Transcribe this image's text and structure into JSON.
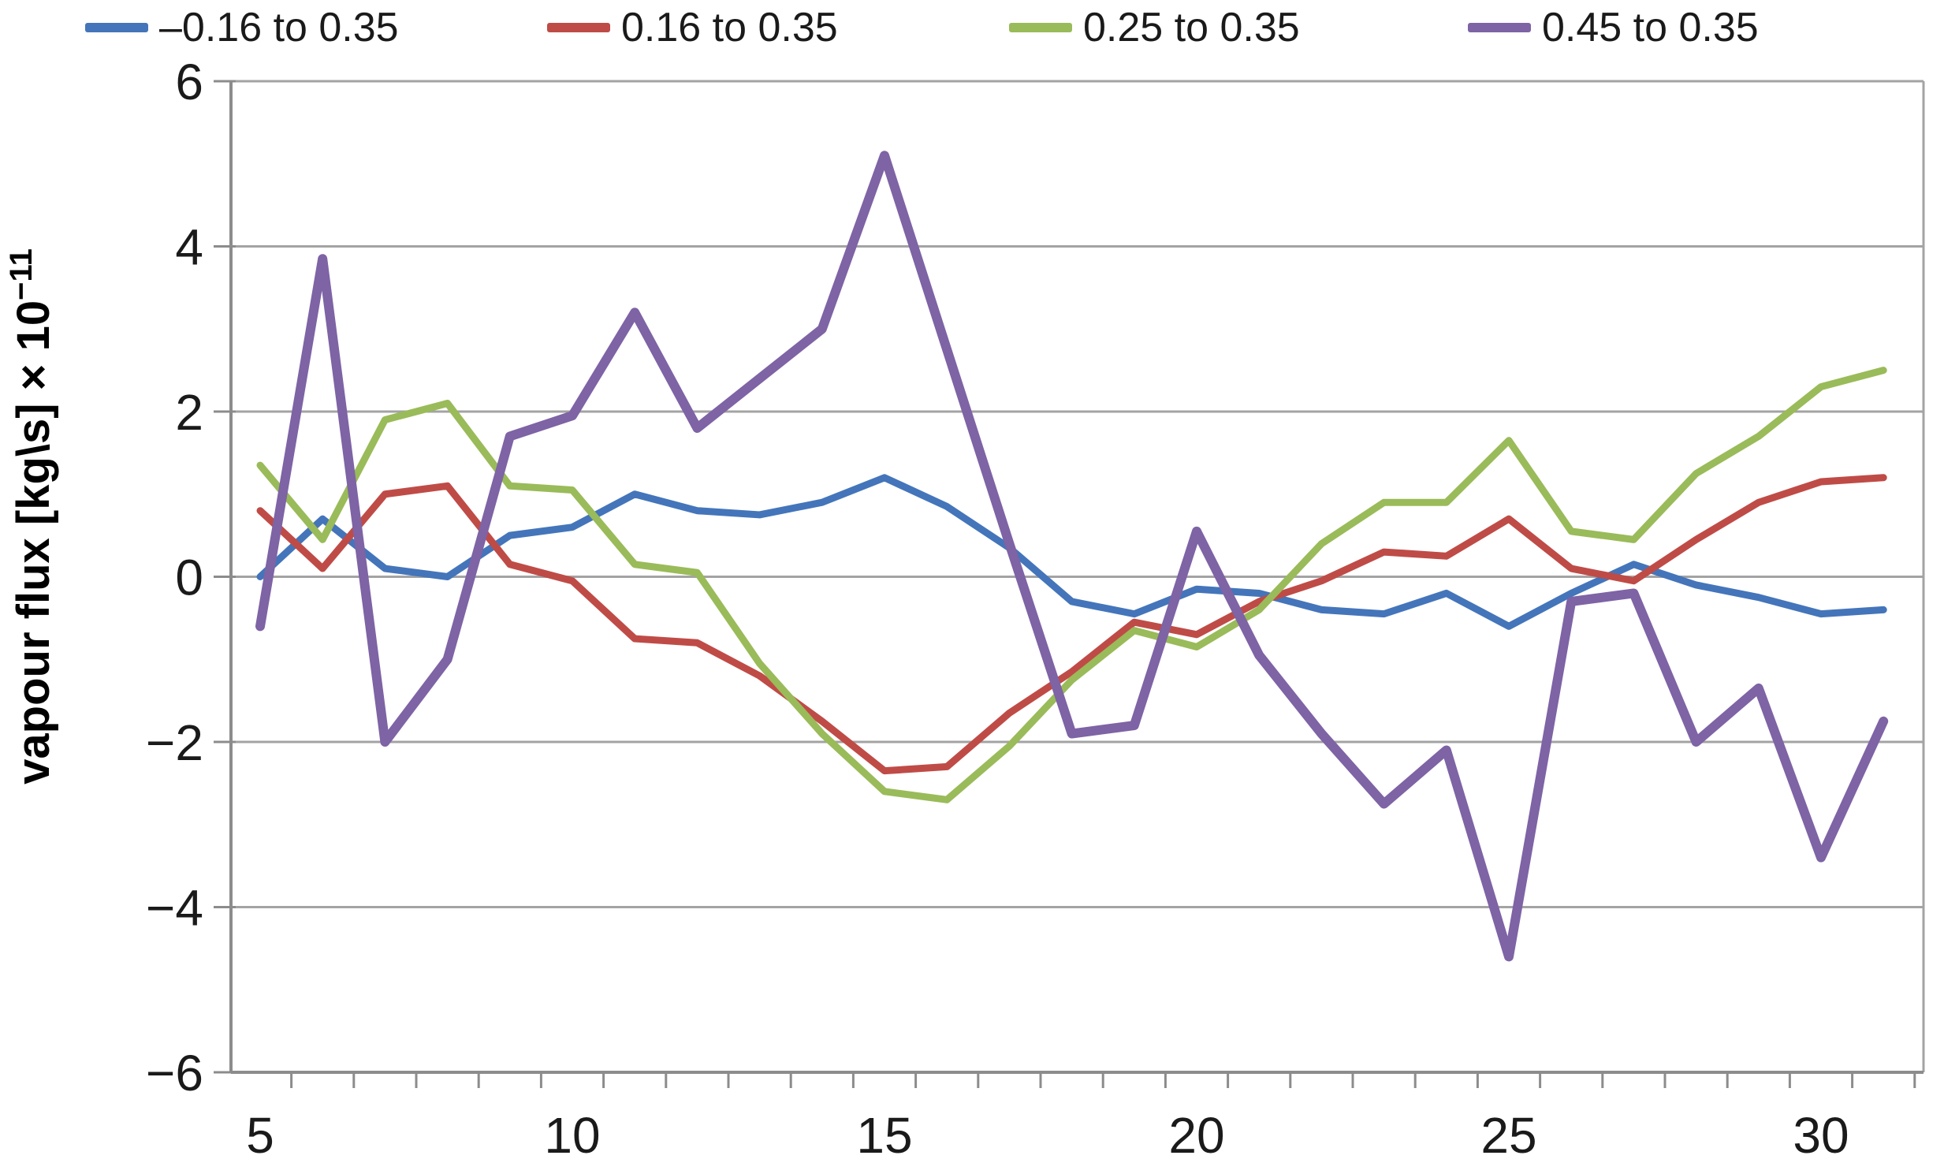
{
  "chart_data": {
    "type": "line",
    "title": "",
    "xlabel": "",
    "ylabel_prefix": "vapour flux [kg\\s] × 10",
    "ylabel_exponent": "−11",
    "xlim": [
      5,
      31
    ],
    "ylim": [
      -6,
      6
    ],
    "grid": "horizontal",
    "legend_position": "top",
    "x": [
      5,
      6,
      7,
      8,
      9,
      10,
      11,
      12,
      13,
      14,
      15,
      16,
      17,
      18,
      19,
      20,
      21,
      22,
      23,
      24,
      25,
      26,
      27,
      28,
      29,
      30,
      31
    ],
    "series": [
      {
        "name": "–0.16 to 0.35",
        "color": "#4475BA",
        "stroke_width": 9,
        "values": [
          0.0,
          0.7,
          0.1,
          0.0,
          0.5,
          0.6,
          1.0,
          0.8,
          0.75,
          0.9,
          1.2,
          0.85,
          0.35,
          -0.3,
          -0.45,
          -0.15,
          -0.2,
          -0.4,
          -0.45,
          -0.2,
          -0.6,
          -0.2,
          0.15,
          -0.1,
          -0.25,
          -0.45,
          -0.4
        ]
      },
      {
        "name": "0.16 to 0.35",
        "color": "#BF4B47",
        "stroke_width": 9,
        "values": [
          0.8,
          0.1,
          1.0,
          1.1,
          0.15,
          -0.05,
          -0.75,
          -0.8,
          -1.2,
          -1.75,
          -2.35,
          -2.3,
          -1.65,
          -1.15,
          -0.55,
          -0.7,
          -0.3,
          -0.05,
          0.3,
          0.25,
          0.7,
          0.1,
          -0.05,
          0.45,
          0.9,
          1.15,
          1.2
        ]
      },
      {
        "name": "0.25 to 0.35",
        "color": "#9ABB59",
        "stroke_width": 9,
        "values": [
          1.35,
          0.45,
          1.9,
          2.1,
          1.1,
          1.05,
          0.15,
          0.05,
          -1.05,
          -1.9,
          -2.6,
          -2.7,
          -2.05,
          -1.25,
          -0.65,
          -0.85,
          -0.4,
          0.4,
          0.9,
          0.9,
          1.65,
          0.55,
          0.45,
          1.25,
          1.7,
          2.3,
          2.5
        ]
      },
      {
        "name": "0.45 to 0.35",
        "color": "#7E63A5",
        "stroke_width": 12,
        "values": [
          -0.6,
          3.85,
          -2.0,
          -1.0,
          1.7,
          1.95,
          3.2,
          1.8,
          2.4,
          3.0,
          5.1,
          2.75,
          0.4,
          -1.9,
          -1.8,
          0.55,
          -0.95,
          -1.9,
          -2.75,
          -2.1,
          -4.6,
          -0.3,
          -0.2,
          -2.0,
          -1.35,
          -3.4,
          -1.75
        ]
      }
    ],
    "yticks": [
      {
        "value": 6,
        "label": "6"
      },
      {
        "value": 4,
        "label": "4"
      },
      {
        "value": 2,
        "label": "2"
      },
      {
        "value": 0,
        "label": "0"
      },
      {
        "value": -2,
        "label": "−2"
      },
      {
        "value": -4,
        "label": "−4"
      },
      {
        "value": -6,
        "label": "−6"
      }
    ],
    "xticks": [
      {
        "value": 5,
        "label": "5"
      },
      {
        "value": 10,
        "label": "10"
      },
      {
        "value": 15,
        "label": "15"
      },
      {
        "value": 20,
        "label": "20"
      },
      {
        "value": 25,
        "label": "25"
      },
      {
        "value": 30,
        "label": "30"
      }
    ],
    "colors": {
      "grid": "#A3A3A3",
      "axis": "#8C8C8C",
      "text": "#1A1A1A"
    }
  }
}
